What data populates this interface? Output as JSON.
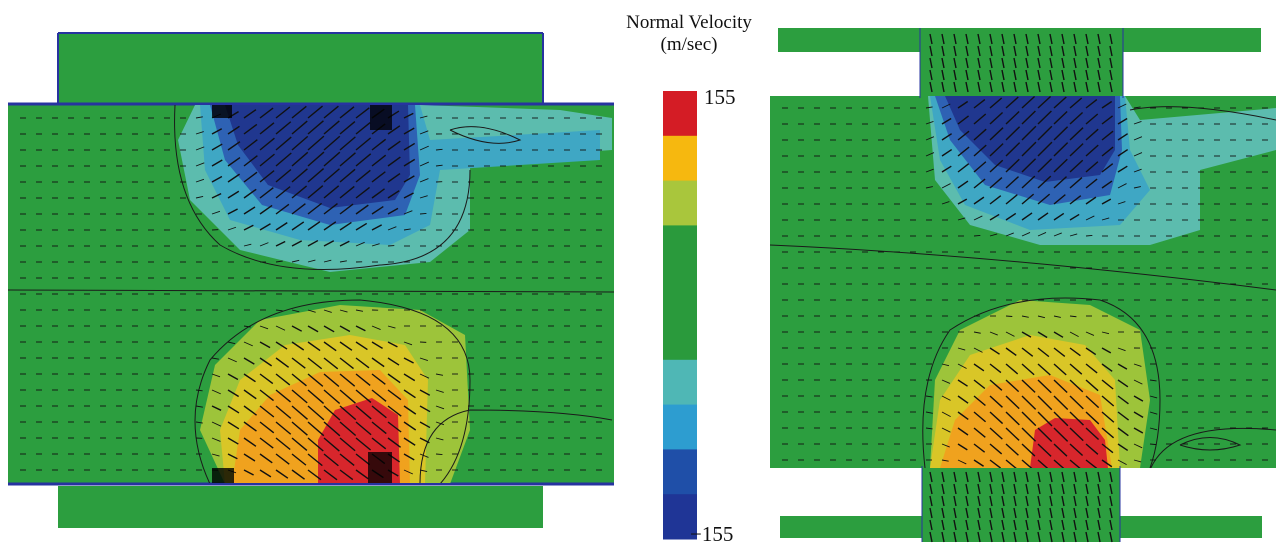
{
  "legend": {
    "title_line1": "Normal Velocity",
    "title_line2": "(m/sec)",
    "max_label": "155",
    "min_label": "−155",
    "bands": [
      "#d41c25",
      "#f6b80f",
      "#a9c63c",
      "#2a9a3c",
      "#2a9a3c",
      "#2a9a3c",
      "#4fb7b5",
      "#2d9dd0",
      "#1f4fa8",
      "#1f3596"
    ]
  },
  "colors": {
    "background_flow": "#2c9e3f",
    "negative_deep": "#20378f",
    "negative_mid": "#2e62b4",
    "negative_light": "#3fa7c4",
    "negative_faint": "#5cbcae",
    "positive_faint": "#9dc43a",
    "positive_light": "#d9c627",
    "positive_mid": "#f0a21e",
    "positive_deep": "#d7262c",
    "wall_line": "#2733a0",
    "arrow": "#111111"
  }
}
